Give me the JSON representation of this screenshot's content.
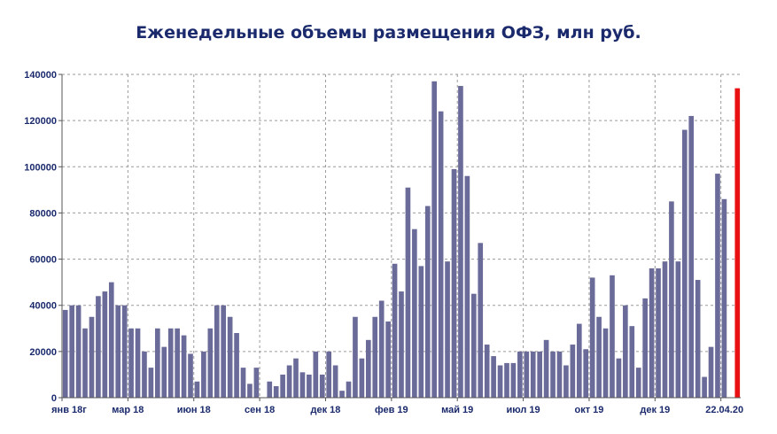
{
  "chart_data": {
    "type": "bar",
    "title": "Еженедельные объемы размещения ОФЗ, млн руб.",
    "xlabel": "",
    "ylabel": "",
    "ylim": [
      0,
      140000
    ],
    "y_ticks": [
      "0",
      "20000",
      "40000",
      "60000",
      "80000",
      "100000",
      "120000",
      "140000"
    ],
    "y_tick_values": [
      0,
      20000,
      40000,
      60000,
      80000,
      100000,
      120000,
      140000
    ],
    "x_tick_labels": [
      "янв 18г",
      "мар 18",
      "июн 18",
      "сен 18",
      "дек 18",
      "фев 19",
      "май 19",
      "июл 19",
      "окт 19",
      "дек 19",
      "22.04.20"
    ],
    "x_tick_week_index": [
      0,
      10,
      20,
      30,
      40,
      50,
      60,
      70,
      80,
      90,
      100
    ],
    "grid": true,
    "bar_color": "#6b6b99",
    "highlight_color": "#e81010",
    "highlight_index": 102,
    "values": [
      38000,
      40000,
      40000,
      30000,
      35000,
      44000,
      46000,
      50000,
      40000,
      40000,
      30000,
      30000,
      20000,
      13000,
      30000,
      22000,
      30000,
      30000,
      27000,
      19000,
      7000,
      20000,
      30000,
      40000,
      40000,
      35000,
      28000,
      13000,
      6000,
      13000,
      0,
      7000,
      5000,
      10000,
      14000,
      17000,
      11000,
      10000,
      20000,
      10000,
      20000,
      14000,
      3000,
      7000,
      35000,
      17000,
      25000,
      35000,
      42000,
      33000,
      58000,
      46000,
      91000,
      73000,
      57000,
      83000,
      137000,
      124000,
      59000,
      99000,
      135000,
      96000,
      45000,
      67000,
      23000,
      18000,
      14000,
      15000,
      15000,
      20000,
      20000,
      20000,
      20000,
      25000,
      20000,
      20000,
      14000,
      23000,
      32000,
      21000,
      52000,
      35000,
      30000,
      53000,
      17000,
      40000,
      31000,
      13000,
      43000,
      56000,
      56000,
      59000,
      85000,
      59000,
      116000,
      122000,
      51000,
      9000,
      22000,
      97000,
      86000,
      0,
      134000
    ]
  }
}
